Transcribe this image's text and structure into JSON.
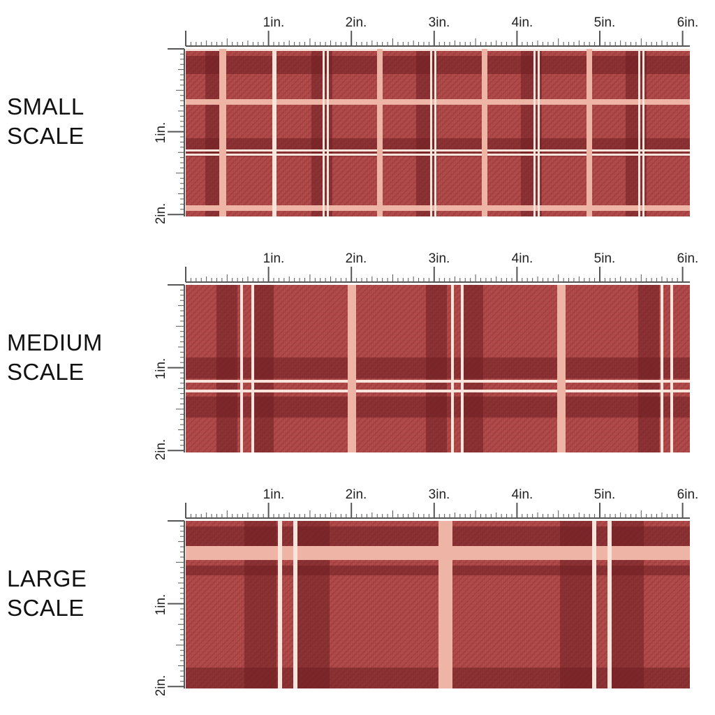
{
  "ruler": {
    "horizontal_labels": [
      "1in.",
      "2in.",
      "3in.",
      "4in.",
      "5in.",
      "6in."
    ],
    "vertical_labels": [
      "1in.",
      "2in."
    ]
  },
  "sections": [
    {
      "label_line1": "SMALL",
      "label_line2": "SCALE",
      "scale": "small"
    },
    {
      "label_line1": "MEDIUM",
      "label_line2": "SCALE",
      "scale": "medium"
    },
    {
      "label_line1": "LARGE",
      "label_line2": "SCALE",
      "scale": "large"
    }
  ],
  "colors": {
    "base": "#b04848",
    "dark_band": "#7e2a2c",
    "light_stripe": "#eeb4a6",
    "white_stripe": "#f8e4da",
    "ruler": "#555555"
  }
}
